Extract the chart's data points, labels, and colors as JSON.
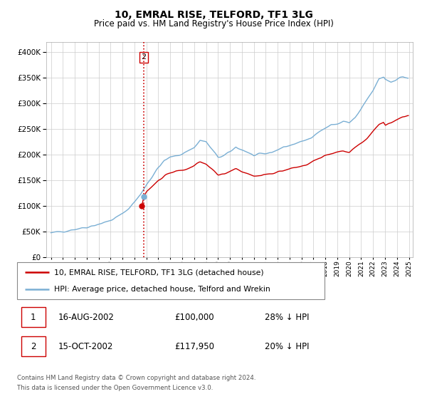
{
  "title": "10, EMRAL RISE, TELFORD, TF1 3LG",
  "subtitle": "Price paid vs. HM Land Registry's House Price Index (HPI)",
  "legend_line1": "10, EMRAL RISE, TELFORD, TF1 3LG (detached house)",
  "legend_line2": "HPI: Average price, detached house, Telford and Wrekin",
  "sale1_label": "1",
  "sale1_date": "16-AUG-2002",
  "sale1_price": "£100,000",
  "sale1_hpi": "28% ↓ HPI",
  "sale2_label": "2",
  "sale2_date": "15-OCT-2002",
  "sale2_price": "£117,950",
  "sale2_hpi": "20% ↓ HPI",
  "footer1": "Contains HM Land Registry data © Crown copyright and database right 2024.",
  "footer2": "This data is licensed under the Open Government Licence v3.0.",
  "red_color": "#cc0000",
  "blue_color": "#7aafd4",
  "marker1_date": 2002.62,
  "marker1_value": 100000,
  "marker2_date": 2002.79,
  "marker2_value": 117950,
  "vline_date": 2002.79,
  "xlim_left": 1994.6,
  "xlim_right": 2025.3,
  "ylim_bottom": 0,
  "ylim_top": 420000,
  "hatch_start": 2024.0
}
